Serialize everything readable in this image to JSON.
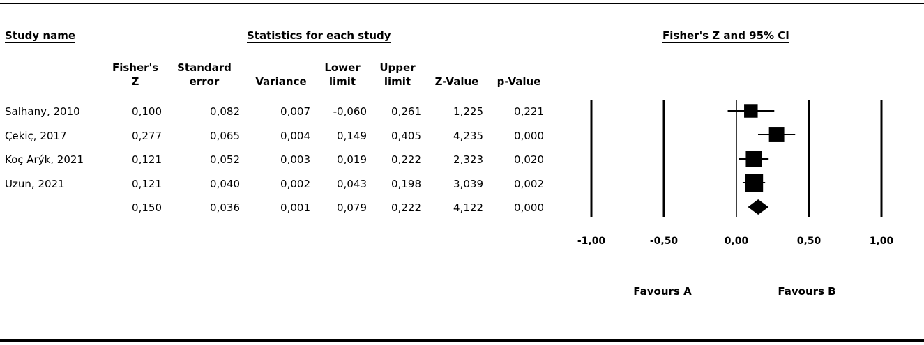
{
  "chart_data": {
    "type": "forest",
    "headers": {
      "study_name": "Study name",
      "statistics": "Statistics for each study",
      "plot": "Fisher's Z and 95% CI"
    },
    "columns": [
      {
        "line1": "Fisher's",
        "line2": "Z"
      },
      {
        "line1": "Standard",
        "line2": "error"
      },
      {
        "line1": "",
        "line2": "Variance"
      },
      {
        "line1": "Lower",
        "line2": "limit"
      },
      {
        "line1": "Upper",
        "line2": "limit"
      },
      {
        "line1": "",
        "line2": "Z-Value"
      },
      {
        "line1": "",
        "line2": "p-Value"
      }
    ],
    "studies": [
      {
        "name": "Salhany, 2010",
        "z": 0.1,
        "se": 0.082,
        "variance": 0.007,
        "lower": -0.06,
        "upper": 0.261,
        "zvalue": 1.225,
        "pvalue": 0.221,
        "cells": [
          "0,100",
          "0,082",
          "0,007",
          "-0,060",
          "0,261",
          "1,225",
          "0,221"
        ]
      },
      {
        "name": "Çekiç, 2017",
        "z": 0.277,
        "se": 0.065,
        "variance": 0.004,
        "lower": 0.149,
        "upper": 0.405,
        "zvalue": 4.235,
        "pvalue": 0.0,
        "cells": [
          "0,277",
          "0,065",
          "0,004",
          "0,149",
          "0,405",
          "4,235",
          "0,000"
        ]
      },
      {
        "name": "Koç Arýk, 2021",
        "z": 0.121,
        "se": 0.052,
        "variance": 0.003,
        "lower": 0.019,
        "upper": 0.222,
        "zvalue": 2.323,
        "pvalue": 0.02,
        "cells": [
          "0,121",
          "0,052",
          "0,003",
          "0,019",
          "0,222",
          "2,323",
          "0,020"
        ]
      },
      {
        "name": "Uzun, 2021",
        "z": 0.121,
        "se": 0.04,
        "variance": 0.002,
        "lower": 0.043,
        "upper": 0.198,
        "zvalue": 3.039,
        "pvalue": 0.002,
        "cells": [
          "0,121",
          "0,040",
          "0,002",
          "0,043",
          "0,198",
          "3,039",
          "0,002"
        ]
      }
    ],
    "summary": {
      "name": "",
      "z": 0.15,
      "se": 0.036,
      "variance": 0.001,
      "lower": 0.079,
      "upper": 0.222,
      "zvalue": 4.122,
      "pvalue": 0.0,
      "cells": [
        "0,150",
        "0,036",
        "0,001",
        "0,079",
        "0,222",
        "4,122",
        "0,000"
      ]
    },
    "x_axis": {
      "min": -1.0,
      "max": 1.0,
      "ticks": [
        -1.0,
        -0.5,
        0.0,
        0.5,
        1.0
      ],
      "tick_labels": [
        "-1,00",
        "-0,50",
        "0,00",
        "0,50",
        "1,00"
      ]
    },
    "favours_left": "Favours A",
    "favours_right": "Favours B"
  }
}
